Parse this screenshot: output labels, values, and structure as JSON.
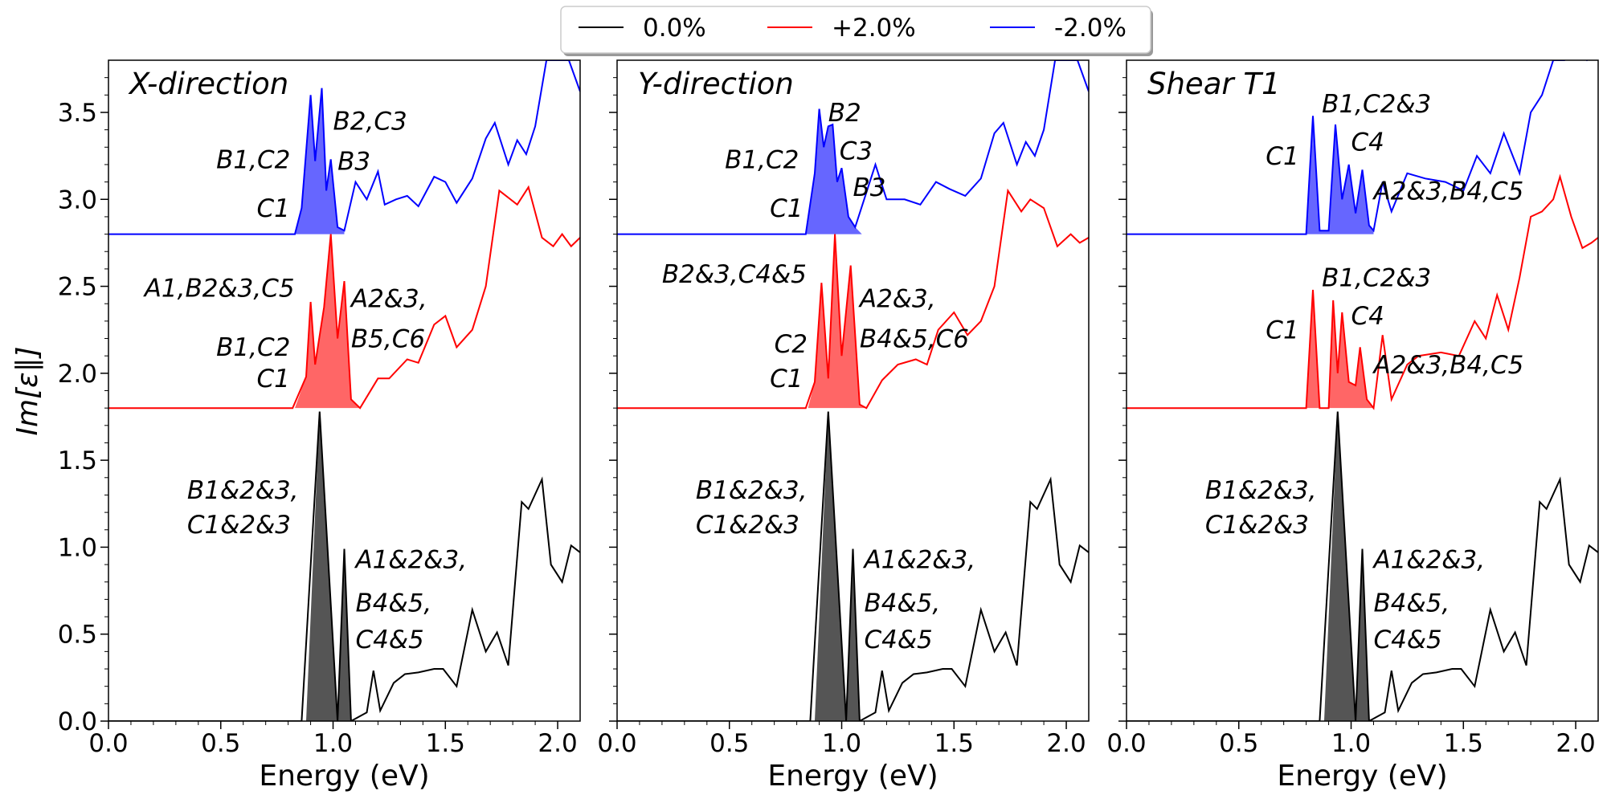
{
  "chart_data": {
    "type": "line",
    "ylabel": "Im[ε∥]",
    "legend": {
      "placement": "top-center",
      "entries": [
        {
          "name": "0.0%",
          "color": "#000000"
        },
        {
          "name": "+2.0%",
          "color": "#ff0000"
        },
        {
          "name": "-2.0%",
          "color": "#0000ff"
        }
      ]
    },
    "shared_y": {
      "ylim": [
        0.0,
        3.8
      ],
      "ticks": [
        "0.0",
        "0.5",
        "1.0",
        "1.5",
        "2.0",
        "2.5",
        "3.0",
        "3.5"
      ],
      "tick_values": [
        0,
        0.5,
        1.0,
        1.5,
        2.0,
        2.5,
        3.0,
        3.5
      ]
    },
    "shared_x": {
      "xlim": [
        0.0,
        2.1
      ],
      "ticks": [
        "0.0",
        "0.5",
        "1.0",
        "1.5",
        "2.0"
      ],
      "tick_values": [
        0,
        0.5,
        1.0,
        1.5,
        2.0
      ]
    },
    "fill_colors": {
      "0.0%": "#555555",
      "+2.0%": "#ff6666",
      "-2.0%": "#6666ff"
    },
    "panels": [
      {
        "title": "X-direction",
        "xlabel": "Energy (eV)",
        "series": [
          {
            "name": "0.0%",
            "fill_range": [
              0.88,
              1.12
            ],
            "x": [
              0.0,
              0.86,
              0.94,
              1.02,
              1.05,
              1.08,
              1.15,
              1.18,
              1.21,
              1.27,
              1.32,
              1.38,
              1.45,
              1.49,
              1.55,
              1.62,
              1.68,
              1.73,
              1.78,
              1.84,
              1.87,
              1.93,
              1.97,
              2.02,
              2.06,
              2.1
            ],
            "y": [
              0.0,
              0.0,
              1.78,
              0.0,
              0.99,
              0.0,
              0.05,
              0.29,
              0.06,
              0.22,
              0.27,
              0.28,
              0.3,
              0.3,
              0.2,
              0.64,
              0.4,
              0.51,
              0.32,
              1.26,
              1.22,
              1.39,
              0.9,
              0.8,
              1.01,
              0.97
            ]
          },
          {
            "name": "+2.0%",
            "fill_range": [
              0.83,
              1.12
            ],
            "x": [
              0.0,
              0.82,
              0.88,
              0.9,
              0.92,
              0.96,
              0.99,
              1.02,
              1.05,
              1.08,
              1.12,
              1.2,
              1.25,
              1.33,
              1.38,
              1.45,
              1.5,
              1.55,
              1.62,
              1.68,
              1.74,
              1.82,
              1.87,
              1.93,
              1.98,
              2.02,
              2.06,
              2.1
            ],
            "y": [
              1.8,
              1.8,
              1.98,
              2.41,
              2.05,
              2.38,
              2.8,
              2.2,
              2.53,
              1.85,
              1.8,
              1.97,
              1.97,
              2.08,
              2.06,
              2.28,
              2.33,
              2.15,
              2.25,
              2.5,
              3.05,
              2.97,
              3.07,
              2.78,
              2.73,
              2.8,
              2.73,
              2.78
            ]
          },
          {
            "name": "-2.0%",
            "fill_range": [
              0.83,
              1.05
            ],
            "x": [
              0.0,
              0.83,
              0.86,
              0.9,
              0.92,
              0.95,
              0.97,
              0.99,
              1.02,
              1.05,
              1.1,
              1.15,
              1.2,
              1.23,
              1.28,
              1.33,
              1.38,
              1.45,
              1.5,
              1.55,
              1.62,
              1.68,
              1.72,
              1.78,
              1.82,
              1.86,
              1.9,
              1.95,
              2.0,
              2.05,
              2.1
            ],
            "y": [
              2.8,
              2.8,
              2.95,
              3.6,
              3.22,
              3.64,
              3.05,
              3.23,
              2.84,
              2.82,
              3.1,
              3.0,
              3.16,
              2.97,
              3.0,
              3.02,
              2.96,
              3.13,
              3.1,
              2.98,
              3.12,
              3.35,
              3.44,
              3.2,
              3.34,
              3.26,
              3.42,
              3.8,
              3.8,
              3.8,
              3.62
            ]
          }
        ],
        "annotations": [
          {
            "text": "C1",
            "x": 0.66,
            "y": 2.9
          },
          {
            "text": "B1,C2",
            "x": 0.48,
            "y": 3.18
          },
          {
            "text": "B2,C3",
            "x": 1.0,
            "y": 3.4
          },
          {
            "text": "B3",
            "x": 1.02,
            "y": 3.17
          },
          {
            "text": "C1",
            "x": 0.66,
            "y": 1.92
          },
          {
            "text": "B1,C2",
            "x": 0.48,
            "y": 2.1
          },
          {
            "text": "A1,B2&3,C5",
            "x": 0.16,
            "y": 2.44
          },
          {
            "text": "A2&3,",
            "x": 1.08,
            "y": 2.38
          },
          {
            "text": "B5,C6",
            "x": 1.08,
            "y": 2.15
          },
          {
            "text": "B1&2&3,",
            "x": 0.35,
            "y": 1.28
          },
          {
            "text": "C1&2&3",
            "x": 0.35,
            "y": 1.08
          },
          {
            "text": "A1&2&3,",
            "x": 1.1,
            "y": 0.88
          },
          {
            "text": "B4&5,",
            "x": 1.1,
            "y": 0.63
          },
          {
            "text": "C4&5",
            "x": 1.1,
            "y": 0.42
          }
        ]
      },
      {
        "title": "Y-direction",
        "xlabel": "Energy (eV)",
        "series": [
          {
            "name": "0.0%",
            "fill_range": [
              0.88,
              1.12
            ],
            "x": [
              0.0,
              0.86,
              0.94,
              1.02,
              1.05,
              1.08,
              1.15,
              1.18,
              1.21,
              1.27,
              1.32,
              1.38,
              1.45,
              1.49,
              1.55,
              1.62,
              1.68,
              1.73,
              1.78,
              1.84,
              1.87,
              1.93,
              1.97,
              2.02,
              2.06,
              2.1
            ],
            "y": [
              0.0,
              0.0,
              1.78,
              0.0,
              0.99,
              0.0,
              0.05,
              0.29,
              0.06,
              0.22,
              0.27,
              0.28,
              0.3,
              0.3,
              0.2,
              0.64,
              0.4,
              0.51,
              0.32,
              1.26,
              1.22,
              1.39,
              0.9,
              0.8,
              1.01,
              0.97
            ]
          },
          {
            "name": "+2.0%",
            "fill_range": [
              0.85,
              1.11
            ],
            "x": [
              0.0,
              0.84,
              0.88,
              0.91,
              0.94,
              0.97,
              1.0,
              1.04,
              1.08,
              1.11,
              1.18,
              1.25,
              1.33,
              1.38,
              1.43,
              1.5,
              1.56,
              1.62,
              1.68,
              1.74,
              1.8,
              1.84,
              1.9,
              1.96,
              2.02,
              2.06,
              2.1
            ],
            "y": [
              1.8,
              1.8,
              1.95,
              2.52,
              1.97,
              2.8,
              2.1,
              2.62,
              1.82,
              1.8,
              1.96,
              2.05,
              2.08,
              2.05,
              2.25,
              2.35,
              2.22,
              2.3,
              2.5,
              3.05,
              2.93,
              3.0,
              2.95,
              2.73,
              2.8,
              2.75,
              2.78
            ]
          },
          {
            "name": "-2.0%",
            "fill_range": [
              0.84,
              1.09
            ],
            "x": [
              0.0,
              0.84,
              0.88,
              0.9,
              0.92,
              0.94,
              0.96,
              0.98,
              1.0,
              1.03,
              1.06,
              1.1,
              1.15,
              1.2,
              1.28,
              1.35,
              1.42,
              1.48,
              1.55,
              1.62,
              1.68,
              1.72,
              1.78,
              1.82,
              1.86,
              1.9,
              1.95,
              2.0,
              2.05,
              2.1
            ],
            "y": [
              2.8,
              2.8,
              3.15,
              3.52,
              3.3,
              3.42,
              3.43,
              3.1,
              3.18,
              2.9,
              2.84,
              3.0,
              3.2,
              3.0,
              3.0,
              2.97,
              3.1,
              3.06,
              3.02,
              3.12,
              3.38,
              3.44,
              3.2,
              3.33,
              3.25,
              3.4,
              3.8,
              3.8,
              3.8,
              3.62
            ]
          }
        ],
        "annotations": [
          {
            "text": "C1",
            "x": 0.68,
            "y": 1.92
          },
          {
            "text": "C2",
            "x": 0.7,
            "y": 2.12
          },
          {
            "text": "B2&3,C4&5",
            "x": 0.2,
            "y": 2.52
          },
          {
            "text": "A2&3,",
            "x": 1.08,
            "y": 2.38
          },
          {
            "text": "B4&5,C6",
            "x": 1.08,
            "y": 2.15
          },
          {
            "text": "C1",
            "x": 0.0,
            "y": 0.0
          },
          {
            "text": "B1,C2",
            "x": 0.48,
            "y": 3.18
          },
          {
            "text": "B2",
            "x": 0.94,
            "y": 3.45
          },
          {
            "text": "C3",
            "x": 0.99,
            "y": 3.23
          },
          {
            "text": "B3",
            "x": 1.05,
            "y": 3.02
          },
          {
            "text": "B1&2&3,",
            "x": 0.35,
            "y": 1.28
          },
          {
            "text": "C1&2&3",
            "x": 0.35,
            "y": 1.08
          },
          {
            "text": "A1&2&3,",
            "x": 1.1,
            "y": 0.88
          },
          {
            "text": "B4&5,",
            "x": 1.1,
            "y": 0.63
          },
          {
            "text": "C4&5",
            "x": 1.1,
            "y": 0.42
          }
        ]
      },
      {
        "title": "Shear T1",
        "xlabel": "Energy (eV)",
        "series": [
          {
            "name": "0.0%",
            "fill_range": [
              0.88,
              1.12
            ],
            "x": [
              0.0,
              0.86,
              0.94,
              1.02,
              1.05,
              1.08,
              1.15,
              1.18,
              1.21,
              1.27,
              1.32,
              1.38,
              1.45,
              1.49,
              1.55,
              1.62,
              1.68,
              1.73,
              1.78,
              1.84,
              1.87,
              1.93,
              1.97,
              2.02,
              2.06,
              2.1
            ],
            "y": [
              0.0,
              0.0,
              1.78,
              0.0,
              0.99,
              0.0,
              0.05,
              0.29,
              0.06,
              0.22,
              0.27,
              0.28,
              0.3,
              0.3,
              0.2,
              0.64,
              0.4,
              0.51,
              0.32,
              1.26,
              1.22,
              1.39,
              0.9,
              0.8,
              1.01,
              0.97
            ]
          },
          {
            "name": "+2.0%",
            "fill_range": [
              0.8,
              1.1
            ],
            "x": [
              0.0,
              0.8,
              0.83,
              0.86,
              0.9,
              0.92,
              0.94,
              0.96,
              0.99,
              1.02,
              1.04,
              1.07,
              1.1,
              1.14,
              1.18,
              1.25,
              1.3,
              1.4,
              1.48,
              1.55,
              1.6,
              1.65,
              1.7,
              1.75,
              1.8,
              1.85,
              1.9,
              1.93,
              1.98,
              2.03,
              2.07,
              2.1
            ],
            "y": [
              1.8,
              1.8,
              2.48,
              1.8,
              1.8,
              2.42,
              2.0,
              2.35,
              1.95,
              1.93,
              2.15,
              1.85,
              1.8,
              2.22,
              1.85,
              2.05,
              2.1,
              2.12,
              2.1,
              2.3,
              2.2,
              2.45,
              2.25,
              2.55,
              2.9,
              2.93,
              3.0,
              3.13,
              2.9,
              2.72,
              2.75,
              2.78
            ]
          },
          {
            "name": "-2.0%",
            "fill_range": [
              0.8,
              1.1
            ],
            "x": [
              0.0,
              0.8,
              0.83,
              0.86,
              0.9,
              0.93,
              0.96,
              0.99,
              1.02,
              1.05,
              1.08,
              1.1,
              1.14,
              1.18,
              1.25,
              1.33,
              1.42,
              1.5,
              1.56,
              1.62,
              1.68,
              1.75,
              1.8,
              1.85,
              1.9,
              1.95,
              2.0,
              2.05,
              2.1
            ],
            "y": [
              2.8,
              2.8,
              3.48,
              2.82,
              2.82,
              3.43,
              3.0,
              3.2,
              2.92,
              3.17,
              2.85,
              2.82,
              3.1,
              2.93,
              3.15,
              3.12,
              3.1,
              3.05,
              3.25,
              3.15,
              3.38,
              3.15,
              3.5,
              3.6,
              3.8,
              3.8,
              3.85,
              3.8,
              3.85
            ]
          }
        ],
        "annotations": [
          {
            "text": "C1",
            "x": 0.62,
            "y": 3.2
          },
          {
            "text": "B1,C2&3",
            "x": 0.87,
            "y": 3.5
          },
          {
            "text": "C4",
            "x": 1.0,
            "y": 3.28
          },
          {
            "text": "A2&3,B4,C5",
            "x": 1.1,
            "y": 3.0
          },
          {
            "text": "C1",
            "x": 0.62,
            "y": 2.2
          },
          {
            "text": "B1,C2&3",
            "x": 0.87,
            "y": 2.5
          },
          {
            "text": "C4",
            "x": 1.0,
            "y": 2.28
          },
          {
            "text": "A2&3,B4,C5",
            "x": 1.1,
            "y": 2.0
          },
          {
            "text": "B1&2&3,",
            "x": 0.35,
            "y": 1.28
          },
          {
            "text": "C1&2&3",
            "x": 0.35,
            "y": 1.08
          },
          {
            "text": "A1&2&3,",
            "x": 1.1,
            "y": 0.88
          },
          {
            "text": "B4&5,",
            "x": 1.1,
            "y": 0.63
          },
          {
            "text": "C4&5",
            "x": 1.1,
            "y": 0.42
          }
        ]
      }
    ]
  }
}
